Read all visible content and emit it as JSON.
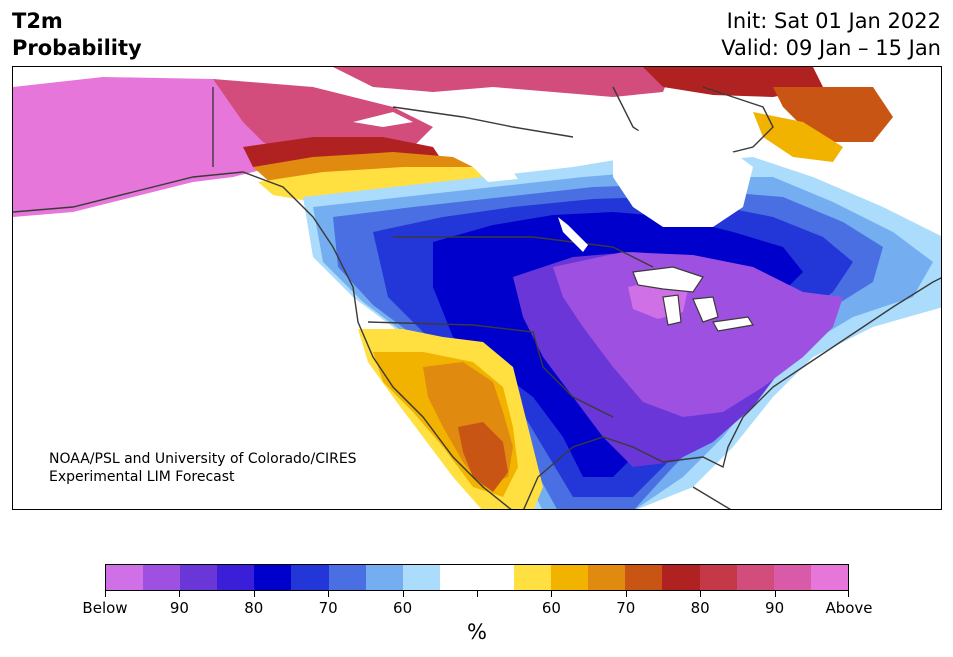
{
  "header": {
    "title_line1": "T2m",
    "title_line2": "Probability",
    "init": "Init: Sat 01 Jan 2022",
    "valid": "Valid: 09 Jan – 15 Jan"
  },
  "credit": {
    "line1": "NOAA/PSL and University of Colorado/CIRES",
    "line2": "Experimental LIM Forecast"
  },
  "colorbar": {
    "colors": [
      "#d070e6",
      "#9e50e0",
      "#6b36d8",
      "#3a1ed8",
      "#0000cc",
      "#2336d8",
      "#4a6fe3",
      "#74aef0",
      "#acdcfb",
      "#ffffff",
      "#ffffff",
      "#ffe040",
      "#f2b200",
      "#e08a10",
      "#c95514",
      "#b02222",
      "#c53848",
      "#d24c7c",
      "#d85aa8",
      "#e676da"
    ],
    "tick_labels": [
      "Below",
      "90",
      "80",
      "70",
      "60",
      "",
      "60",
      "70",
      "80",
      "90",
      "Above"
    ],
    "unit": "%"
  }
}
